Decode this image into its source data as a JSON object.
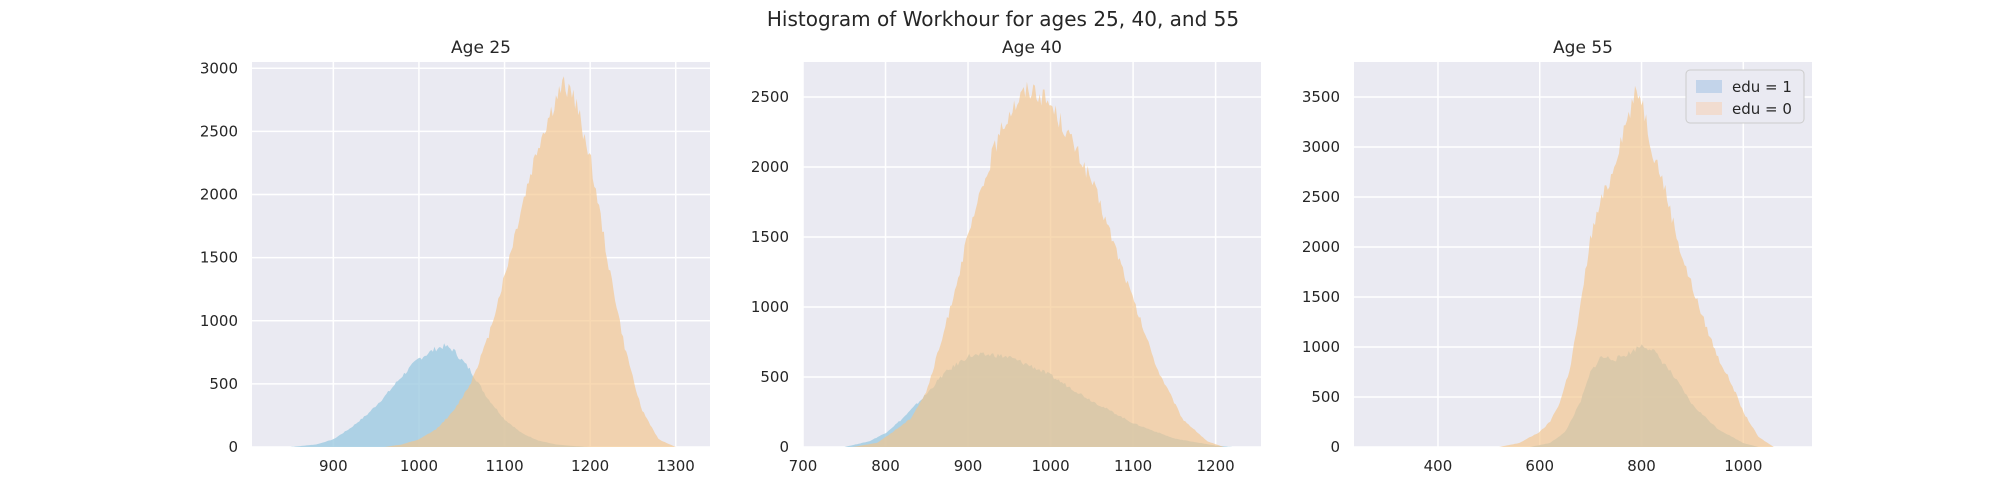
{
  "figure_title": "Histogram of Workhour for ages 25, 40, and 55",
  "colors": {
    "background": "#eaeaf2",
    "grid": "#ffffff",
    "edu1": "#9ecae1",
    "edu0": "#f5c58a",
    "legend_edu1": "#c3d4ea",
    "legend_edu0": "#f1dcd0"
  },
  "legend": {
    "placement": "top-right of third panel",
    "entries": [
      "edu = 1",
      "edu = 0"
    ]
  },
  "chart_data": [
    {
      "type": "area",
      "title": "Age 25",
      "xlabel": "",
      "ylabel": "",
      "xlim": [
        805,
        1340
      ],
      "ylim": [
        0,
        3050
      ],
      "xticks": [
        900,
        1000,
        1100,
        1200,
        1300
      ],
      "yticks": [
        0,
        500,
        1000,
        1500,
        2000,
        2500,
        3000
      ],
      "grid": true,
      "series": [
        {
          "key": "edu1",
          "x": [
            850,
            880,
            900,
            920,
            940,
            960,
            980,
            1000,
            1020,
            1030,
            1040,
            1060,
            1080,
            1100,
            1120,
            1140,
            1160,
            1180,
            1200
          ],
          "y": [
            0,
            20,
            60,
            150,
            260,
            400,
            560,
            700,
            780,
            800,
            770,
            610,
            390,
            220,
            110,
            50,
            20,
            8,
            0
          ]
        },
        {
          "key": "edu0",
          "x": [
            960,
            980,
            1000,
            1020,
            1040,
            1060,
            1080,
            1100,
            1120,
            1140,
            1160,
            1170,
            1180,
            1200,
            1220,
            1240,
            1260,
            1280,
            1300
          ],
          "y": [
            0,
            20,
            60,
            140,
            280,
            500,
            850,
            1350,
            1900,
            2400,
            2750,
            2870,
            2800,
            2300,
            1500,
            800,
            300,
            60,
            0
          ]
        }
      ]
    },
    {
      "type": "area",
      "title": "Age 40",
      "xlabel": "",
      "ylabel": "",
      "xlim": [
        700,
        1255
      ],
      "ylim": [
        0,
        2750
      ],
      "xticks": [
        700,
        800,
        900,
        1000,
        1100,
        1200
      ],
      "yticks": [
        0,
        500,
        1000,
        1500,
        2000,
        2500
      ],
      "grid": true,
      "series": [
        {
          "key": "edu1",
          "x": [
            750,
            780,
            800,
            820,
            850,
            870,
            900,
            930,
            950,
            980,
            1000,
            1050,
            1100,
            1150,
            1200,
            1220
          ],
          "y": [
            0,
            40,
            100,
            200,
            380,
            520,
            650,
            660,
            640,
            570,
            510,
            330,
            170,
            60,
            10,
            0
          ]
        },
        {
          "key": "edu0",
          "x": [
            760,
            790,
            800,
            830,
            850,
            870,
            900,
            930,
            950,
            970,
            980,
            1000,
            1020,
            1050,
            1080,
            1100,
            1130,
            1160,
            1190,
            1210
          ],
          "y": [
            0,
            30,
            70,
            200,
            400,
            800,
            1500,
            2100,
            2400,
            2550,
            2560,
            2450,
            2250,
            1900,
            1400,
            1050,
            550,
            200,
            40,
            0
          ]
        }
      ]
    },
    {
      "type": "area",
      "title": "Age 55",
      "xlabel": "",
      "ylabel": "",
      "xlim": [
        235,
        1135
      ],
      "ylim": [
        0,
        3850
      ],
      "xticks": [
        400,
        600,
        800,
        1000
      ],
      "yticks": [
        0,
        500,
        1000,
        1500,
        2000,
        2500,
        3000,
        3500
      ],
      "grid": true,
      "series": [
        {
          "key": "edu1",
          "x": [
            580,
            620,
            650,
            680,
            700,
            720,
            750,
            780,
            800,
            820,
            850,
            880,
            900,
            950,
            1000,
            1030
          ],
          "y": [
            0,
            40,
            150,
            450,
            750,
            900,
            880,
            950,
            1020,
            980,
            800,
            580,
            420,
            180,
            40,
            0
          ]
        },
        {
          "key": "edu0",
          "x": [
            520,
            560,
            600,
            620,
            640,
            660,
            680,
            700,
            720,
            740,
            760,
            780,
            790,
            800,
            820,
            840,
            860,
            880,
            900,
            920,
            950,
            980,
            1000,
            1030,
            1060
          ],
          "y": [
            0,
            40,
            150,
            250,
            450,
            800,
            1400,
            2100,
            2450,
            2700,
            3100,
            3400,
            3550,
            3500,
            3000,
            2700,
            2300,
            1900,
            1600,
            1300,
            900,
            600,
            350,
            100,
            0
          ]
        }
      ]
    }
  ]
}
